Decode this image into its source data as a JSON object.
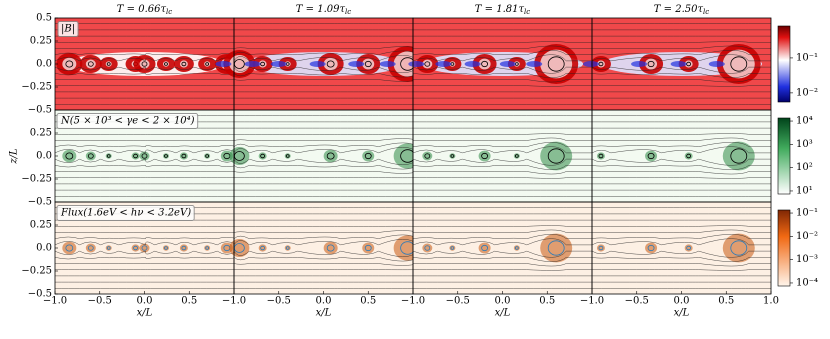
{
  "figure": {
    "columns": [
      {
        "title": "T = 0.66τ",
        "title_sub": "lc"
      },
      {
        "title": "T = 1.09τ",
        "title_sub": "lc"
      },
      {
        "title": "T = 1.81τ",
        "title_sub": "lc"
      },
      {
        "title": "T = 2.50τ",
        "title_sub": "lc"
      }
    ],
    "rows": [
      {
        "label": "|B|",
        "colorbar_ticks": [
          "10⁻¹",
          "10⁻²"
        ]
      },
      {
        "label": "N(5 × 10³ < γe < 2 × 10⁴)",
        "colorbar_ticks": [
          "10⁴",
          "10³",
          "10²",
          "10¹"
        ]
      },
      {
        "label": "Flux(1.6eV < hν < 3.2eV)",
        "colorbar_ticks": [
          "10⁻¹",
          "10⁻²",
          "10⁻³",
          "10⁻⁴"
        ]
      }
    ],
    "y_axis": {
      "label": "z/L",
      "ticks": [
        "0.5",
        "0.25",
        "0.0",
        "−0.25",
        "−0.5"
      ]
    },
    "x_axis": {
      "label": "x/L",
      "ticks": [
        "−1.0",
        "−0.5",
        "0.0",
        "0.5",
        "1.0"
      ]
    }
  }
}
